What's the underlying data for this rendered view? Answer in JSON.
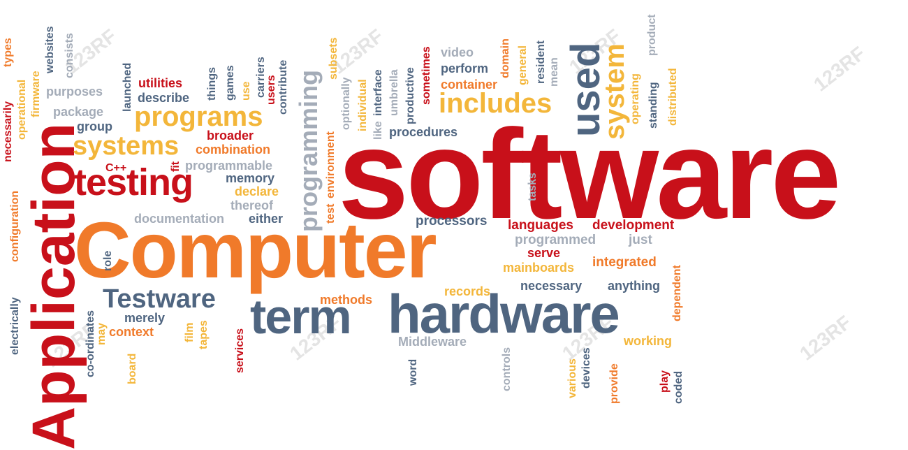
{
  "colors": {
    "red": "#c8101a",
    "orange": "#f07a2a",
    "gold": "#f3b63a",
    "slate": "#4f6580",
    "gray": "#a4acb8"
  },
  "words": [
    {
      "text": "software",
      "color": "red"
    },
    {
      "text": "Computer",
      "color": "orange"
    },
    {
      "text": "Application",
      "color": "red"
    },
    {
      "text": "hardware",
      "color": "slate"
    },
    {
      "text": "term",
      "color": "slate"
    },
    {
      "text": "testing",
      "color": "red"
    },
    {
      "text": "programs",
      "color": "gold"
    },
    {
      "text": "systems",
      "color": "gold"
    },
    {
      "text": "Testware",
      "color": "slate"
    },
    {
      "text": "includes",
      "color": "gold"
    },
    {
      "text": "used",
      "color": "slate"
    },
    {
      "text": "system",
      "color": "gold"
    },
    {
      "text": "programming",
      "color": "gray"
    },
    {
      "text": "languages",
      "color": "red"
    },
    {
      "text": "development",
      "color": "red"
    },
    {
      "text": "processors",
      "color": "slate"
    },
    {
      "text": "programmed",
      "color": "gray"
    },
    {
      "text": "just",
      "color": "gray"
    },
    {
      "text": "serve",
      "color": "red"
    },
    {
      "text": "integrated",
      "color": "orange"
    },
    {
      "text": "mainboards",
      "color": "gold"
    },
    {
      "text": "necessary",
      "color": "slate"
    },
    {
      "text": "anything",
      "color": "slate"
    },
    {
      "text": "records",
      "color": "gold"
    },
    {
      "text": "methods",
      "color": "orange"
    },
    {
      "text": "working",
      "color": "gold"
    },
    {
      "text": "Middleware",
      "color": "gray"
    },
    {
      "text": "documentation",
      "color": "gray"
    },
    {
      "text": "either",
      "color": "slate"
    },
    {
      "text": "thereof",
      "color": "gray"
    },
    {
      "text": "declare",
      "color": "gold"
    },
    {
      "text": "memory",
      "color": "slate"
    },
    {
      "text": "programmable",
      "color": "gray"
    },
    {
      "text": "combination",
      "color": "orange"
    },
    {
      "text": "broader",
      "color": "red"
    },
    {
      "text": "group",
      "color": "slate"
    },
    {
      "text": "package",
      "color": "gray"
    },
    {
      "text": "purposes",
      "color": "gray"
    },
    {
      "text": "describe",
      "color": "slate"
    },
    {
      "text": "utilities",
      "color": "red"
    },
    {
      "text": "C++",
      "color": "red"
    },
    {
      "text": "merely",
      "color": "slate"
    },
    {
      "text": "context",
      "color": "orange"
    },
    {
      "text": "procedures",
      "color": "slate"
    },
    {
      "text": "container",
      "color": "orange"
    },
    {
      "text": "perform",
      "color": "slate"
    },
    {
      "text": "video",
      "color": "gray"
    },
    {
      "text": "necessarily",
      "color": "red"
    },
    {
      "text": "types",
      "color": "orange"
    },
    {
      "text": "configuration",
      "color": "orange"
    },
    {
      "text": "electrically",
      "color": "slate"
    },
    {
      "text": "operational",
      "color": "gold"
    },
    {
      "text": "firmware",
      "color": "gold"
    },
    {
      "text": "websites",
      "color": "slate"
    },
    {
      "text": "consists",
      "color": "gray"
    },
    {
      "text": "launched",
      "color": "slate"
    },
    {
      "text": "things",
      "color": "slate"
    },
    {
      "text": "games",
      "color": "slate"
    },
    {
      "text": "use",
      "color": "gold"
    },
    {
      "text": "carriers",
      "color": "slate"
    },
    {
      "text": "users",
      "color": "red"
    },
    {
      "text": "contribute",
      "color": "slate"
    },
    {
      "text": "subsets",
      "color": "gold"
    },
    {
      "text": "optionally",
      "color": "gray"
    },
    {
      "text": "individual",
      "color": "gold"
    },
    {
      "text": "like",
      "color": "gray"
    },
    {
      "text": "interface",
      "color": "slate"
    },
    {
      "text": "umbrella",
      "color": "gray"
    },
    {
      "text": "productive",
      "color": "slate"
    },
    {
      "text": "sometimes",
      "color": "red"
    },
    {
      "text": "domain",
      "color": "orange"
    },
    {
      "text": "general",
      "color": "gold"
    },
    {
      "text": "resident",
      "color": "slate"
    },
    {
      "text": "mean",
      "color": "gray"
    },
    {
      "text": "operating",
      "color": "gold"
    },
    {
      "text": "standing",
      "color": "slate"
    },
    {
      "text": "product",
      "color": "gray"
    },
    {
      "text": "distributed",
      "color": "gold"
    },
    {
      "text": "fit",
      "color": "red"
    },
    {
      "text": "test",
      "color": "orange"
    },
    {
      "text": "environment",
      "color": "orange"
    },
    {
      "text": "tasks",
      "color": "gray"
    },
    {
      "text": "role",
      "color": "slate"
    },
    {
      "text": "co-ordinates",
      "color": "slate"
    },
    {
      "text": "may",
      "color": "gold"
    },
    {
      "text": "board",
      "color": "gold"
    },
    {
      "text": "film",
      "color": "gold"
    },
    {
      "text": "tapes",
      "color": "gold"
    },
    {
      "text": "services",
      "color": "red"
    },
    {
      "text": "word",
      "color": "slate"
    },
    {
      "text": "controls",
      "color": "gray"
    },
    {
      "text": "various",
      "color": "gold"
    },
    {
      "text": "devices",
      "color": "slate"
    },
    {
      "text": "provide",
      "color": "orange"
    },
    {
      "text": "play",
      "color": "red"
    },
    {
      "text": "coded",
      "color": "slate"
    },
    {
      "text": "dependent",
      "color": "orange"
    }
  ],
  "watermark": {
    "text": "123RF"
  }
}
